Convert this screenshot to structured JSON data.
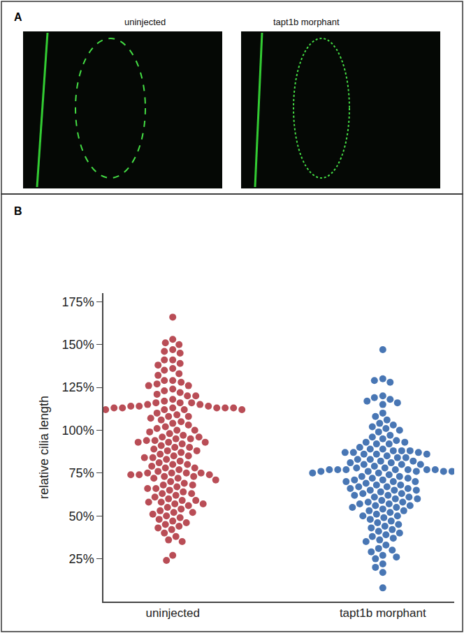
{
  "panel_a": {
    "label": "A",
    "image_titles": [
      "uninjected",
      "tapt1b morphant"
    ]
  },
  "chart_data": {
    "label": "B",
    "type": "swarm",
    "y_label": "relative cilia length",
    "categories": [
      "uninjected",
      "tapt1b morphant"
    ],
    "colors": [
      "#b5434d",
      "#3e6fb0"
    ],
    "ylim": [
      0,
      180
    ],
    "yticks": [
      {
        "value": 25,
        "label": "25%"
      },
      {
        "value": 50,
        "label": "50%"
      },
      {
        "value": 75,
        "label": "75%"
      },
      {
        "value": 100,
        "label": "100%"
      },
      {
        "value": 125,
        "label": "125%"
      },
      {
        "value": 150,
        "label": "150%"
      },
      {
        "value": 175,
        "label": "175%"
      }
    ],
    "grid": false,
    "values": [
      [
        166,
        153,
        151,
        150,
        147,
        146,
        145,
        141,
        141,
        139,
        138,
        136,
        135,
        133,
        132,
        129,
        129,
        128,
        127,
        126,
        126,
        124,
        123,
        122,
        121,
        120,
        120,
        118,
        117,
        116,
        116,
        115,
        114,
        114,
        113,
        113,
        113,
        113,
        113,
        112,
        112,
        112,
        112,
        113,
        114,
        115,
        116,
        110,
        109,
        108,
        108,
        107,
        106,
        105,
        104,
        103,
        102,
        101,
        100,
        100,
        99,
        98,
        97,
        96,
        96,
        95,
        95,
        94,
        94,
        93,
        93,
        93,
        92,
        91,
        90,
        90,
        89,
        88,
        88,
        87,
        86,
        85,
        85,
        84,
        84,
        83,
        82,
        81,
        80,
        80,
        79,
        78,
        78,
        77,
        76,
        75,
        75,
        75,
        75,
        74,
        74,
        74,
        73,
        73,
        72,
        72,
        71,
        70,
        69,
        68,
        68,
        67,
        66,
        66,
        65,
        64,
        63,
        63,
        62,
        61,
        60,
        59,
        59,
        58,
        58,
        57,
        57,
        56,
        55,
        54,
        53,
        52,
        52,
        51,
        50,
        49,
        48,
        47,
        46,
        45,
        44,
        43,
        42,
        40,
        38,
        36,
        35,
        27,
        24
      ],
      [
        147,
        130,
        129,
        128,
        120,
        119,
        118,
        117,
        116,
        115,
        110,
        108,
        106,
        104,
        103,
        102,
        101,
        100,
        99,
        97,
        96,
        95,
        94,
        93,
        93,
        92,
        92,
        90,
        89,
        89,
        88,
        88,
        88,
        87,
        87,
        87,
        86,
        86,
        86,
        85,
        84,
        84,
        83,
        83,
        82,
        82,
        81,
        81,
        80,
        80,
        80,
        79,
        78,
        78,
        77,
        77,
        77,
        77,
        77,
        77,
        77,
        76,
        76,
        76,
        76,
        76,
        75,
        75,
        75,
        74,
        73,
        73,
        72,
        72,
        71,
        71,
        70,
        70,
        70,
        69,
        68,
        68,
        67,
        67,
        66,
        66,
        65,
        65,
        65,
        64,
        63,
        63,
        62,
        62,
        61,
        61,
        60,
        60,
        59,
        58,
        58,
        57,
        57,
        56,
        56,
        55,
        55,
        54,
        53,
        53,
        52,
        51,
        50,
        50,
        49,
        48,
        47,
        46,
        45,
        44,
        43,
        42,
        41,
        40,
        39,
        38,
        37,
        36,
        35,
        33,
        31,
        30,
        29,
        27,
        26,
        25,
        22,
        20,
        17,
        8
      ]
    ]
  }
}
